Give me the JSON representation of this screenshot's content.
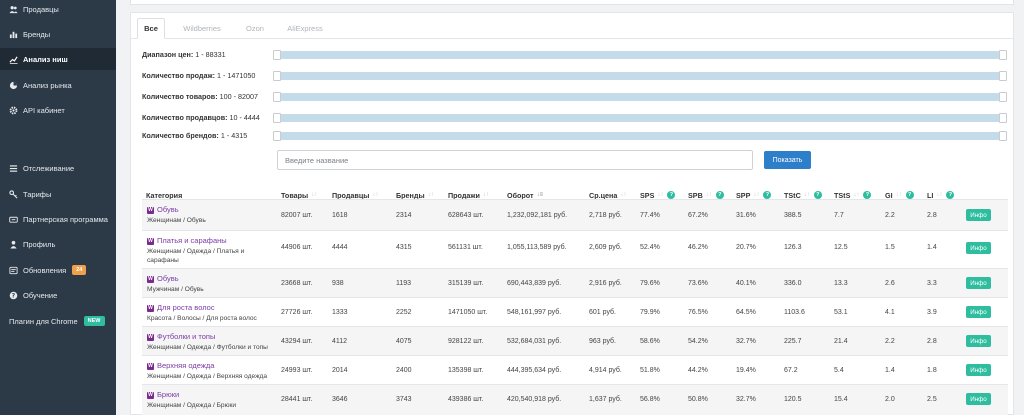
{
  "sidebar": {
    "items": [
      {
        "label": "Продавцы",
        "icon": "users-icon"
      },
      {
        "label": "Бренды",
        "icon": "bar-chart-icon"
      },
      {
        "label": "Анализ ниш",
        "icon": "line-chart-icon",
        "active": true
      },
      {
        "label": "Анализ рынка",
        "icon": "pie-chart-icon"
      },
      {
        "label": "API кабинет",
        "icon": "gear-icon"
      },
      {
        "label": "Отслеживание",
        "icon": "list-icon"
      },
      {
        "label": "Тарифы",
        "icon": "key-icon"
      },
      {
        "label": "Партнерская программа",
        "icon": "handshake-icon"
      },
      {
        "label": "Профиль",
        "icon": "user-icon"
      },
      {
        "label": "Обновления",
        "icon": "update-icon",
        "badge": "24"
      },
      {
        "label": "Обучение",
        "icon": "help-icon"
      },
      {
        "label": "Плагин для Chrome",
        "badge": "NEW"
      }
    ]
  },
  "tabs": [
    "Все",
    "Wildberries",
    "Ozon",
    "AliExpress"
  ],
  "filters": [
    {
      "label": "Диапазон цен:",
      "range": "1 - 88331"
    },
    {
      "label": "Количество продаж:",
      "range": "1 - 1471050"
    },
    {
      "label": "Количество товаров:",
      "range": "100 - 82007"
    },
    {
      "label": "Количество продавцов:",
      "range": "10 - 4444"
    },
    {
      "label": "Количество брендов:",
      "range": "1 - 4315"
    }
  ],
  "search": {
    "placeholder": "Введите название",
    "button": "Показать"
  },
  "table": {
    "columns": [
      "Категория",
      "Товары",
      "Продавцы",
      "Бренды",
      "Продажи",
      "Оборот",
      "Ср.цена",
      "SPS",
      "SPB",
      "SPP",
      "TStC",
      "TStS",
      "GI",
      "LI"
    ],
    "info_label": "Инфо",
    "rows": [
      {
        "name": "Обувь",
        "path": "Женщинам / Обувь",
        "goods": "82007 шт.",
        "sellers": "1618",
        "brands": "2314",
        "sales": "628643 шт.",
        "turnover": "1,232,092,181 руб.",
        "avg": "2,718 руб.",
        "sps": "77.4%",
        "spb": "67.2%",
        "spp": "31.6%",
        "tstc": "388.5",
        "tsts": "7.7",
        "gi": "2.2",
        "li": "2.8"
      },
      {
        "name": "Платья и сарафаны",
        "path": "Женщинам / Одежда / Платья и сарафаны",
        "goods": "44906 шт.",
        "sellers": "4444",
        "brands": "4315",
        "sales": "561131 шт.",
        "turnover": "1,055,113,589 руб.",
        "avg": "2,609 руб.",
        "sps": "52.4%",
        "spb": "46.2%",
        "spp": "20.7%",
        "tstc": "126.3",
        "tsts": "12.5",
        "gi": "1.5",
        "li": "1.4"
      },
      {
        "name": "Обувь",
        "path": "Мужчинам / Обувь",
        "goods": "23668 шт.",
        "sellers": "938",
        "brands": "1193",
        "sales": "315139 шт.",
        "turnover": "690,443,839 руб.",
        "avg": "2,916 руб.",
        "sps": "79.6%",
        "spb": "73.6%",
        "spp": "40.1%",
        "tstc": "336.0",
        "tsts": "13.3",
        "gi": "2.6",
        "li": "3.3"
      },
      {
        "name": "Для роста волос",
        "path": "Красота / Волосы / Для роста волос",
        "goods": "27726 шт.",
        "sellers": "1333",
        "brands": "2252",
        "sales": "1471050 шт.",
        "turnover": "548,161,997 руб.",
        "avg": "601 руб.",
        "sps": "79.9%",
        "spb": "76.5%",
        "spp": "64.5%",
        "tstc": "1103.6",
        "tsts": "53.1",
        "gi": "4.1",
        "li": "3.9"
      },
      {
        "name": "Футболки и топы",
        "path": "Женщинам / Одежда / Футболки и топы",
        "goods": "43294 шт.",
        "sellers": "4112",
        "brands": "4075",
        "sales": "928122 шт.",
        "turnover": "532,684,031 руб.",
        "avg": "963 руб.",
        "sps": "58.6%",
        "spb": "54.2%",
        "spp": "32.7%",
        "tstc": "225.7",
        "tsts": "21.4",
        "gi": "2.2",
        "li": "2.8"
      },
      {
        "name": "Верхняя одежда",
        "path": "Женщинам / Одежда / Верхняя одежда",
        "goods": "24993 шт.",
        "sellers": "2014",
        "brands": "2400",
        "sales": "135398 шт.",
        "turnover": "444,395,634 руб.",
        "avg": "4,914 руб.",
        "sps": "51.8%",
        "spb": "44.2%",
        "spp": "19.4%",
        "tstc": "67.2",
        "tsts": "5.4",
        "gi": "1.4",
        "li": "1.8"
      },
      {
        "name": "Брюки",
        "path": "Женщинам / Одежда / Брюки",
        "goods": "28441 шт.",
        "sellers": "3646",
        "brands": "3743",
        "sales": "439386 шт.",
        "turnover": "420,540,918 руб.",
        "avg": "1,637 руб.",
        "sps": "56.8%",
        "spb": "50.8%",
        "spp": "32.7%",
        "tstc": "120.5",
        "tsts": "15.4",
        "gi": "2.0",
        "li": "2.5"
      }
    ]
  }
}
